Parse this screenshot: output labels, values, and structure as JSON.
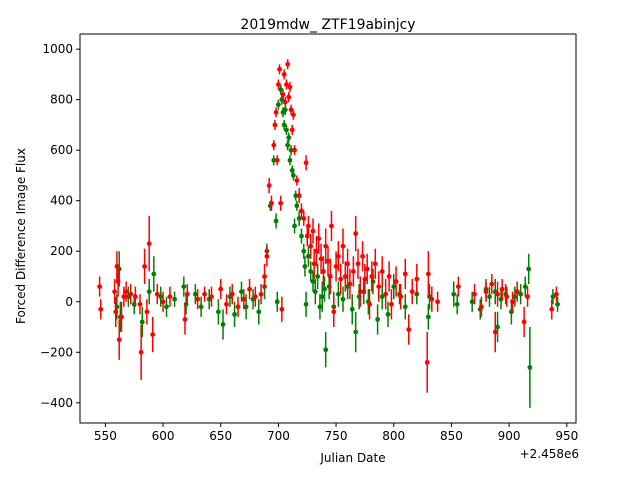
{
  "chart_data": {
    "type": "scatter",
    "title": "2019mdw_ ZTF19abinjcy",
    "xlabel": "Julian Date",
    "ylabel": "Forced Difference Image Flux",
    "offset_text": "+2.458e6",
    "xlim": [
      528,
      958
    ],
    "ylim": [
      -480,
      1060
    ],
    "xticks": [
      550,
      600,
      650,
      700,
      750,
      800,
      850,
      900,
      950
    ],
    "yticks": [
      -400,
      -200,
      0,
      200,
      400,
      600,
      800,
      1000
    ],
    "grid": false,
    "legend": "none",
    "series": [
      {
        "color": "#008000",
        "points": [
          [
            560,
            -20,
            50
          ],
          [
            562,
            130,
            70
          ],
          [
            563,
            -60,
            60
          ],
          [
            570,
            20,
            40
          ],
          [
            575,
            -10,
            40
          ],
          [
            582,
            -80,
            60
          ],
          [
            588,
            40,
            50
          ],
          [
            592,
            110,
            70
          ],
          [
            598,
            20,
            40
          ],
          [
            603,
            -20,
            40
          ],
          [
            610,
            10,
            30
          ],
          [
            618,
            60,
            40
          ],
          [
            620,
            -10,
            40
          ],
          [
            628,
            30,
            40
          ],
          [
            633,
            -20,
            40
          ],
          [
            640,
            10,
            40
          ],
          [
            648,
            -40,
            50
          ],
          [
            652,
            -90,
            60
          ],
          [
            658,
            20,
            40
          ],
          [
            662,
            -50,
            50
          ],
          [
            668,
            40,
            40
          ],
          [
            672,
            -20,
            50
          ],
          [
            678,
            10,
            40
          ],
          [
            683,
            -40,
            50
          ],
          [
            688,
            60,
            50
          ],
          [
            690,
            200,
            30
          ],
          [
            693,
            380,
            20
          ],
          [
            696,
            560,
            20
          ],
          [
            698,
            320,
            30
          ],
          [
            699,
            0,
            40
          ],
          [
            700,
            780,
            20
          ],
          [
            702,
            840,
            20
          ],
          [
            703,
            800,
            20
          ],
          [
            704,
            750,
            20
          ],
          [
            705,
            700,
            20
          ],
          [
            706,
            760,
            20
          ],
          [
            707,
            680,
            20
          ],
          [
            708,
            620,
            20
          ],
          [
            709,
            650,
            20
          ],
          [
            710,
            560,
            20
          ],
          [
            711,
            600,
            20
          ],
          [
            712,
            520,
            20
          ],
          [
            713,
            500,
            20
          ],
          [
            714,
            300,
            30
          ],
          [
            715,
            420,
            20
          ],
          [
            716,
            380,
            20
          ],
          [
            718,
            330,
            30
          ],
          [
            720,
            260,
            30
          ],
          [
            722,
            200,
            30
          ],
          [
            723,
            140,
            40
          ],
          [
            724,
            -10,
            50
          ],
          [
            726,
            180,
            40
          ],
          [
            728,
            120,
            40
          ],
          [
            730,
            80,
            40
          ],
          [
            732,
            40,
            50
          ],
          [
            734,
            100,
            50
          ],
          [
            736,
            -20,
            50
          ],
          [
            738,
            20,
            60
          ],
          [
            740,
            50,
            50
          ],
          [
            741,
            -190,
            70
          ],
          [
            744,
            60,
            50
          ],
          [
            748,
            -20,
            60
          ],
          [
            752,
            30,
            50
          ],
          [
            756,
            10,
            50
          ],
          [
            760,
            60,
            50
          ],
          [
            764,
            -30,
            60
          ],
          [
            767,
            -120,
            80
          ],
          [
            770,
            20,
            50
          ],
          [
            774,
            40,
            50
          ],
          [
            778,
            0,
            50
          ],
          [
            782,
            80,
            50
          ],
          [
            786,
            -70,
            60
          ],
          [
            790,
            20,
            50
          ],
          [
            795,
            -50,
            50
          ],
          [
            800,
            60,
            50
          ],
          [
            805,
            30,
            40
          ],
          [
            810,
            -20,
            50
          ],
          [
            820,
            30,
            40
          ],
          [
            830,
            -60,
            50
          ],
          [
            831,
            20,
            50
          ],
          [
            852,
            30,
            50
          ],
          [
            855,
            -10,
            40
          ],
          [
            868,
            0,
            40
          ],
          [
            875,
            -30,
            40
          ],
          [
            880,
            50,
            40
          ],
          [
            883,
            20,
            40
          ],
          [
            888,
            40,
            50
          ],
          [
            890,
            -100,
            60
          ],
          [
            893,
            10,
            40
          ],
          [
            897,
            30,
            40
          ],
          [
            902,
            -40,
            50
          ],
          [
            905,
            20,
            40
          ],
          [
            910,
            30,
            40
          ],
          [
            914,
            60,
            40
          ],
          [
            917,
            130,
            60
          ],
          [
            918,
            -260,
            160
          ],
          [
            938,
            20,
            30
          ],
          [
            942,
            -10,
            30
          ]
        ]
      },
      {
        "color": "#ff0000",
        "points": [
          [
            545,
            60,
            40
          ],
          [
            546,
            -30,
            40
          ],
          [
            558,
            40,
            50
          ],
          [
            559,
            -40,
            60
          ],
          [
            560,
            140,
            60
          ],
          [
            561,
            80,
            60
          ],
          [
            562,
            -150,
            80
          ],
          [
            564,
            -60,
            60
          ],
          [
            566,
            20,
            40
          ],
          [
            568,
            40,
            40
          ],
          [
            572,
            30,
            40
          ],
          [
            576,
            20,
            40
          ],
          [
            580,
            -10,
            40
          ],
          [
            581,
            -200,
            110
          ],
          [
            584,
            140,
            70
          ],
          [
            586,
            -40,
            50
          ],
          [
            588,
            230,
            110
          ],
          [
            591,
            -130,
            70
          ],
          [
            595,
            30,
            40
          ],
          [
            600,
            0,
            40
          ],
          [
            606,
            20,
            40
          ],
          [
            619,
            -70,
            60
          ],
          [
            621,
            30,
            40
          ],
          [
            630,
            10,
            40
          ],
          [
            636,
            30,
            30
          ],
          [
            642,
            20,
            40
          ],
          [
            650,
            50,
            40
          ],
          [
            655,
            -10,
            40
          ],
          [
            660,
            30,
            40
          ],
          [
            665,
            -20,
            40
          ],
          [
            670,
            10,
            40
          ],
          [
            675,
            50,
            40
          ],
          [
            680,
            20,
            40
          ],
          [
            685,
            30,
            40
          ],
          [
            688,
            100,
            50
          ],
          [
            690,
            180,
            40
          ],
          [
            692,
            460,
            30
          ],
          [
            694,
            390,
            30
          ],
          [
            696,
            620,
            20
          ],
          [
            697,
            700,
            20
          ],
          [
            698,
            750,
            20
          ],
          [
            699,
            560,
            20
          ],
          [
            700,
            860,
            20
          ],
          [
            701,
            920,
            20
          ],
          [
            702,
            390,
            30
          ],
          [
            703,
            -30,
            50
          ],
          [
            704,
            820,
            20
          ],
          [
            705,
            900,
            20
          ],
          [
            706,
            790,
            20
          ],
          [
            707,
            860,
            20
          ],
          [
            708,
            940,
            20
          ],
          [
            709,
            810,
            20
          ],
          [
            710,
            850,
            20
          ],
          [
            711,
            760,
            20
          ],
          [
            712,
            680,
            20
          ],
          [
            713,
            740,
            20
          ],
          [
            714,
            600,
            20
          ],
          [
            716,
            480,
            20
          ],
          [
            718,
            420,
            30
          ],
          [
            720,
            360,
            30
          ],
          [
            722,
            330,
            30
          ],
          [
            724,
            550,
            30
          ],
          [
            725,
            260,
            40
          ],
          [
            726,
            300,
            40
          ],
          [
            728,
            220,
            50
          ],
          [
            730,
            280,
            50
          ],
          [
            731,
            150,
            60
          ],
          [
            733,
            200,
            60
          ],
          [
            735,
            250,
            60
          ],
          [
            737,
            170,
            60
          ],
          [
            739,
            120,
            60
          ],
          [
            741,
            220,
            70
          ],
          [
            743,
            160,
            60
          ],
          [
            745,
            100,
            70
          ],
          [
            746,
            300,
            60
          ],
          [
            748,
            -40,
            60
          ],
          [
            750,
            140,
            60
          ],
          [
            752,
            180,
            60
          ],
          [
            754,
            90,
            60
          ],
          [
            756,
            220,
            70
          ],
          [
            758,
            100,
            60
          ],
          [
            760,
            150,
            60
          ],
          [
            762,
            70,
            60
          ],
          [
            765,
            120,
            60
          ],
          [
            767,
            270,
            70
          ],
          [
            769,
            150,
            60
          ],
          [
            771,
            40,
            60
          ],
          [
            773,
            180,
            60
          ],
          [
            775,
            90,
            60
          ],
          [
            777,
            130,
            60
          ],
          [
            779,
            -10,
            60
          ],
          [
            781,
            100,
            60
          ],
          [
            784,
            150,
            60
          ],
          [
            787,
            60,
            60
          ],
          [
            790,
            120,
            60
          ],
          [
            793,
            30,
            60
          ],
          [
            796,
            100,
            60
          ],
          [
            798,
            -10,
            60
          ],
          [
            802,
            80,
            60
          ],
          [
            806,
            20,
            50
          ],
          [
            810,
            110,
            60
          ],
          [
            813,
            -110,
            60
          ],
          [
            816,
            40,
            50
          ],
          [
            820,
            90,
            60
          ],
          [
            829,
            -240,
            120
          ],
          [
            830,
            110,
            90
          ],
          [
            833,
            10,
            50
          ],
          [
            838,
            0,
            40
          ],
          [
            856,
            60,
            40
          ],
          [
            870,
            30,
            40
          ],
          [
            876,
            -20,
            40
          ],
          [
            880,
            40,
            40
          ],
          [
            885,
            70,
            40
          ],
          [
            888,
            -120,
            80
          ],
          [
            890,
            30,
            50
          ],
          [
            894,
            50,
            40
          ],
          [
            898,
            20,
            40
          ],
          [
            903,
            0,
            40
          ],
          [
            907,
            40,
            40
          ],
          [
            913,
            -80,
            60
          ],
          [
            916,
            20,
            40
          ],
          [
            937,
            -30,
            40
          ],
          [
            941,
            30,
            30
          ]
        ]
      }
    ]
  }
}
